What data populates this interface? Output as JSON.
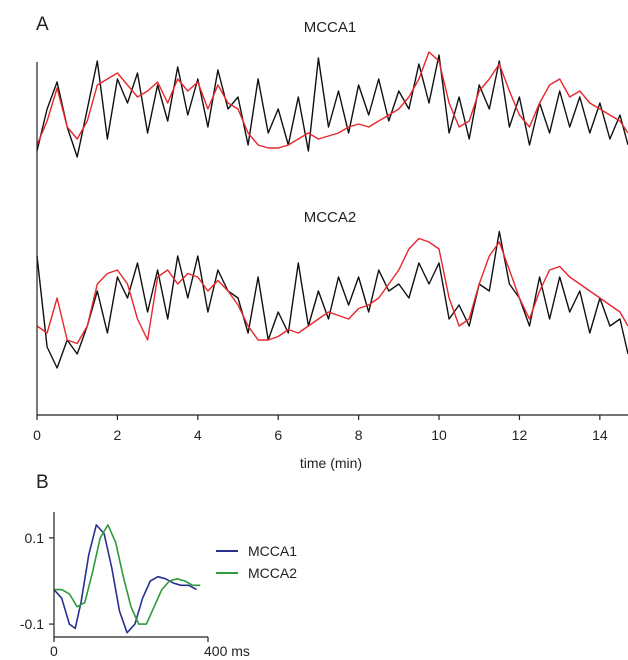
{
  "chart_data": [
    {
      "type": "line",
      "panel_label": "A",
      "xlabel": "time (min)",
      "xlim": [
        0,
        14.7
      ],
      "x_ticks": [
        "0",
        "2",
        "4",
        "6",
        "8",
        "10",
        "12",
        "14"
      ],
      "grid": false,
      "subplots": [
        {
          "title": "MCCA1",
          "series": [
            {
              "color": "#111111",
              "x": [
                0,
                0.25,
                0.5,
                0.75,
                1,
                1.25,
                1.5,
                1.75,
                2,
                2.25,
                2.5,
                2.75,
                3,
                3.25,
                3.5,
                3.75,
                4,
                4.25,
                4.5,
                4.75,
                5,
                5.25,
                5.5,
                5.75,
                6,
                6.25,
                6.5,
                6.75,
                7,
                7.25,
                7.5,
                7.75,
                8,
                8.25,
                8.5,
                8.75,
                9,
                9.25,
                9.5,
                9.75,
                10,
                10.25,
                10.5,
                10.75,
                11,
                11.25,
                11.5,
                11.75,
                12,
                12.25,
                12.5,
                12.75,
                13,
                13.25,
                13.5,
                13.75,
                14,
                14.25,
                14.5,
                14.7
              ],
              "y": [
                -0.6,
                0.1,
                0.55,
                -0.2,
                -0.7,
                0.1,
                0.9,
                -0.4,
                0.6,
                0.2,
                0.7,
                -0.3,
                0.5,
                -0.1,
                0.8,
                0.0,
                0.6,
                -0.2,
                0.75,
                0.1,
                0.3,
                -0.5,
                0.6,
                -0.3,
                0.1,
                -0.5,
                0.3,
                -0.6,
                0.95,
                -0.2,
                0.4,
                -0.3,
                0.5,
                0.0,
                0.6,
                -0.1,
                0.4,
                0.1,
                0.85,
                0.2,
                1.0,
                -0.3,
                0.3,
                -0.4,
                0.5,
                0.1,
                0.9,
                -0.2,
                0.3,
                -0.5,
                0.2,
                -0.3,
                0.4,
                -0.2,
                0.3,
                -0.3,
                0.2,
                -0.4,
                0.0,
                -0.5
              ]
            },
            {
              "color": "#e8262b",
              "x": [
                0,
                0.25,
                0.5,
                0.75,
                1,
                1.25,
                1.5,
                1.75,
                2,
                2.25,
                2.5,
                2.75,
                3,
                3.25,
                3.5,
                3.75,
                4,
                4.25,
                4.5,
                4.75,
                5,
                5.25,
                5.5,
                5.75,
                6,
                6.25,
                6.5,
                6.75,
                7,
                7.25,
                7.5,
                7.75,
                8,
                8.25,
                8.5,
                8.75,
                9,
                9.25,
                9.5,
                9.75,
                10,
                10.25,
                10.5,
                10.75,
                11,
                11.25,
                11.5,
                11.75,
                12,
                12.25,
                12.5,
                12.75,
                13,
                13.25,
                13.5,
                13.75,
                14,
                14.25,
                14.5,
                14.7
              ],
              "y": [
                -0.5,
                -0.1,
                0.45,
                -0.2,
                -0.4,
                -0.1,
                0.5,
                0.6,
                0.7,
                0.5,
                0.3,
                0.4,
                0.55,
                0.2,
                0.6,
                0.4,
                0.55,
                0.1,
                0.5,
                0.2,
                0.1,
                -0.3,
                -0.5,
                -0.55,
                -0.55,
                -0.5,
                -0.4,
                -0.3,
                -0.4,
                -0.35,
                -0.3,
                -0.2,
                -0.15,
                -0.2,
                -0.1,
                0.0,
                0.1,
                0.3,
                0.6,
                1.05,
                0.9,
                0.2,
                -0.2,
                -0.1,
                0.4,
                0.6,
                0.85,
                0.4,
                0.0,
                -0.2,
                0.2,
                0.5,
                0.6,
                0.3,
                0.4,
                0.2,
                0.1,
                0.0,
                -0.1,
                -0.3
              ]
            }
          ]
        },
        {
          "title": "MCCA2",
          "series": [
            {
              "color": "#111111",
              "x": [
                0,
                0.25,
                0.5,
                0.75,
                1,
                1.25,
                1.5,
                1.75,
                2,
                2.25,
                2.5,
                2.75,
                3,
                3.25,
                3.5,
                3.75,
                4,
                4.25,
                4.5,
                4.75,
                5,
                5.25,
                5.5,
                5.75,
                6,
                6.25,
                6.5,
                6.75,
                7,
                7.25,
                7.5,
                7.75,
                8,
                8.25,
                8.5,
                8.75,
                9,
                9.25,
                9.5,
                9.75,
                10,
                10.25,
                10.5,
                10.75,
                11,
                11.25,
                11.5,
                11.75,
                12,
                12.25,
                12.5,
                12.75,
                13,
                13.25,
                13.5,
                13.75,
                14,
                14.25,
                14.5,
                14.7
              ],
              "y": [
                0.7,
                -0.6,
                -0.9,
                -0.5,
                -0.7,
                -0.3,
                0.2,
                -0.4,
                0.4,
                0.1,
                0.6,
                -0.1,
                0.5,
                -0.2,
                0.7,
                0.1,
                0.7,
                -0.1,
                0.5,
                0.2,
                0.1,
                -0.4,
                0.4,
                -0.5,
                -0.1,
                -0.4,
                0.6,
                -0.3,
                0.2,
                -0.2,
                0.4,
                0.0,
                0.4,
                -0.1,
                0.5,
                0.2,
                0.3,
                0.1,
                0.6,
                0.3,
                0.6,
                -0.2,
                0.0,
                -0.3,
                0.3,
                0.2,
                1.05,
                0.3,
                0.1,
                -0.3,
                0.4,
                -0.2,
                0.4,
                -0.1,
                0.2,
                -0.4,
                0.1,
                -0.3,
                -0.2,
                -0.7
              ]
            },
            {
              "color": "#e8262b",
              "x": [
                0,
                0.25,
                0.5,
                0.75,
                1,
                1.25,
                1.5,
                1.75,
                2,
                2.25,
                2.5,
                2.75,
                3,
                3.25,
                3.5,
                3.75,
                4,
                4.25,
                4.5,
                4.75,
                5,
                5.25,
                5.5,
                5.75,
                6,
                6.25,
                6.5,
                6.75,
                7,
                7.25,
                7.5,
                7.75,
                8,
                8.25,
                8.5,
                8.75,
                9,
                9.25,
                9.5,
                9.75,
                10,
                10.25,
                10.5,
                10.75,
                11,
                11.25,
                11.5,
                11.75,
                12,
                12.25,
                12.5,
                12.75,
                13,
                13.25,
                13.5,
                13.75,
                14,
                14.25,
                14.5,
                14.7
              ],
              "y": [
                -0.3,
                -0.4,
                0.1,
                -0.5,
                -0.55,
                -0.3,
                0.3,
                0.45,
                0.5,
                0.3,
                -0.2,
                -0.5,
                0.4,
                0.5,
                0.3,
                0.45,
                0.4,
                0.2,
                0.35,
                0.2,
                0.0,
                -0.3,
                -0.5,
                -0.5,
                -0.45,
                -0.35,
                -0.4,
                -0.3,
                -0.2,
                -0.1,
                -0.15,
                -0.2,
                -0.05,
                0.0,
                0.1,
                0.3,
                0.5,
                0.8,
                0.95,
                0.9,
                0.8,
                0.1,
                -0.3,
                -0.2,
                0.3,
                0.7,
                0.9,
                0.5,
                0.1,
                -0.2,
                0.2,
                0.5,
                0.55,
                0.4,
                0.3,
                0.2,
                0.1,
                0.0,
                -0.1,
                -0.3
              ]
            }
          ]
        }
      ]
    },
    {
      "type": "line",
      "panel_label": "B",
      "x_ticks": [
        "0",
        "400 ms"
      ],
      "xlim": [
        0,
        400
      ],
      "y_ticks": [
        "0.1",
        "-0.1"
      ],
      "ylim": [
        -0.13,
        0.16
      ],
      "grid": false,
      "legend_position": "right",
      "series": [
        {
          "name": "MCCA1",
          "color": "#2b2f8f",
          "x": [
            0,
            20,
            40,
            55,
            70,
            90,
            110,
            130,
            150,
            170,
            190,
            210,
            230,
            250,
            270,
            290,
            310,
            330,
            350,
            370
          ],
          "y": [
            -0.02,
            -0.04,
            -0.1,
            -0.11,
            -0.05,
            0.06,
            0.13,
            0.11,
            0.03,
            -0.07,
            -0.12,
            -0.1,
            -0.04,
            0.0,
            0.01,
            0.005,
            -0.005,
            -0.01,
            -0.01,
            -0.02
          ]
        },
        {
          "name": "MCCA2",
          "color": "#2e9a3b",
          "x": [
            0,
            20,
            40,
            60,
            80,
            100,
            120,
            140,
            160,
            180,
            200,
            220,
            240,
            260,
            280,
            300,
            320,
            340,
            360,
            380
          ],
          "y": [
            -0.02,
            -0.02,
            -0.03,
            -0.06,
            -0.05,
            0.02,
            0.1,
            0.13,
            0.09,
            0.01,
            -0.06,
            -0.1,
            -0.1,
            -0.06,
            -0.02,
            0.0,
            0.005,
            0.0,
            -0.01,
            -0.01
          ]
        }
      ]
    }
  ]
}
